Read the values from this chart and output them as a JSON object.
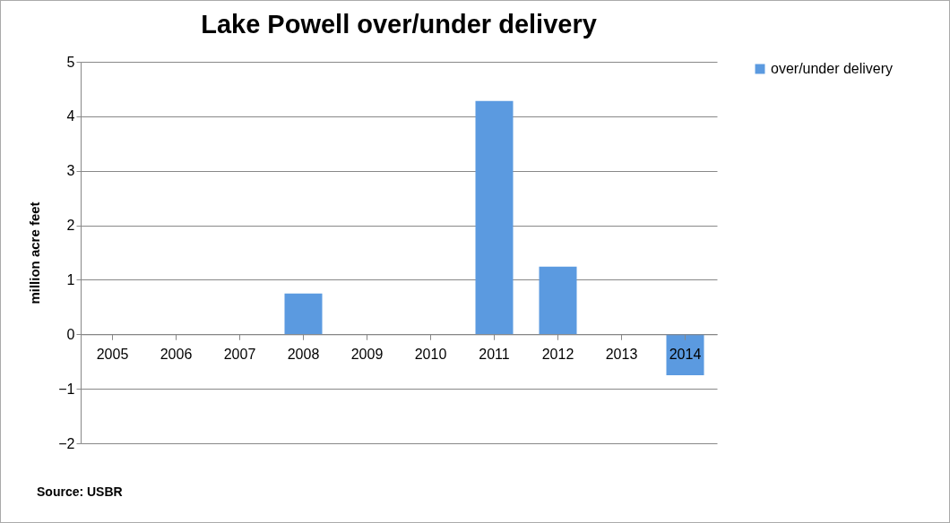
{
  "chart_data": {
    "type": "bar",
    "title": "Lake Powell over/under delivery",
    "ylabel": "million acre feet",
    "categories": [
      "2005",
      "2006",
      "2007",
      "2008",
      "2009",
      "2010",
      "2011",
      "2012",
      "2013",
      "2014"
    ],
    "series": [
      {
        "name": "over/under delivery",
        "color": "#5b9ae0",
        "values": [
          0,
          0,
          0,
          0.75,
          0,
          0,
          4.28,
          1.24,
          0,
          -0.75
        ]
      }
    ],
    "ylim": [
      -2,
      5
    ],
    "yticks": [
      -2,
      -1,
      0,
      1,
      2,
      3,
      4,
      5
    ],
    "grid": "y",
    "legend": "right",
    "annotations": [
      "Source: USBR"
    ]
  }
}
